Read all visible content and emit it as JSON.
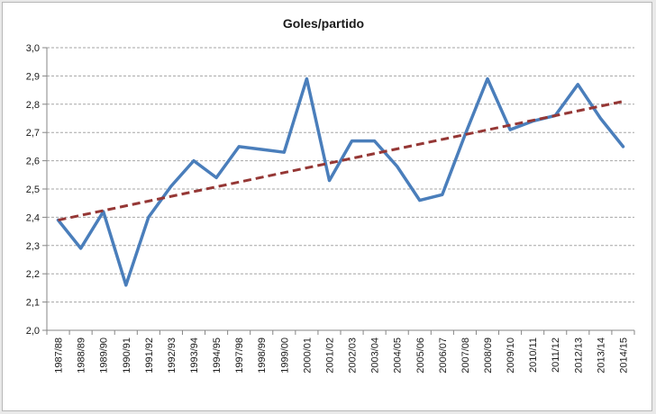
{
  "chart_data": {
    "type": "line",
    "title": "Goles/partido",
    "xlabel": "",
    "ylabel": "",
    "ylim": [
      2.0,
      3.0
    ],
    "ytick_step": 0.1,
    "yticks": [
      "2,0",
      "2,1",
      "2,2",
      "2,3",
      "2,4",
      "2,5",
      "2,6",
      "2,7",
      "2,8",
      "2,9",
      "3,0"
    ],
    "grid": true,
    "legend": "none",
    "categories": [
      "1987/88",
      "1988/89",
      "1989/90",
      "1990/91",
      "1991/92",
      "1992/93",
      "1993/94",
      "1994/95",
      "1997/98",
      "1998/99",
      "1999/00",
      "2000/01",
      "2001/02",
      "2002/03",
      "2003/04",
      "2004/05",
      "2005/06",
      "2006/07",
      "2007/08",
      "2008/09",
      "2009/10",
      "2010/11",
      "2011/12",
      "2012/13",
      "2013/14",
      "2014/15"
    ],
    "series": [
      {
        "color": "#4a7ebb",
        "values": [
          2.39,
          2.29,
          2.42,
          2.16,
          2.4,
          2.51,
          2.6,
          2.54,
          2.65,
          2.64,
          2.63,
          2.89,
          2.53,
          2.67,
          2.67,
          2.58,
          2.46,
          2.48,
          2.69,
          2.89,
          2.71,
          2.74,
          2.76,
          2.87,
          2.75,
          2.65
        ]
      }
    ],
    "trendline": {
      "style": "dashed",
      "color": "#953735",
      "start": 2.39,
      "end": 2.81
    }
  }
}
